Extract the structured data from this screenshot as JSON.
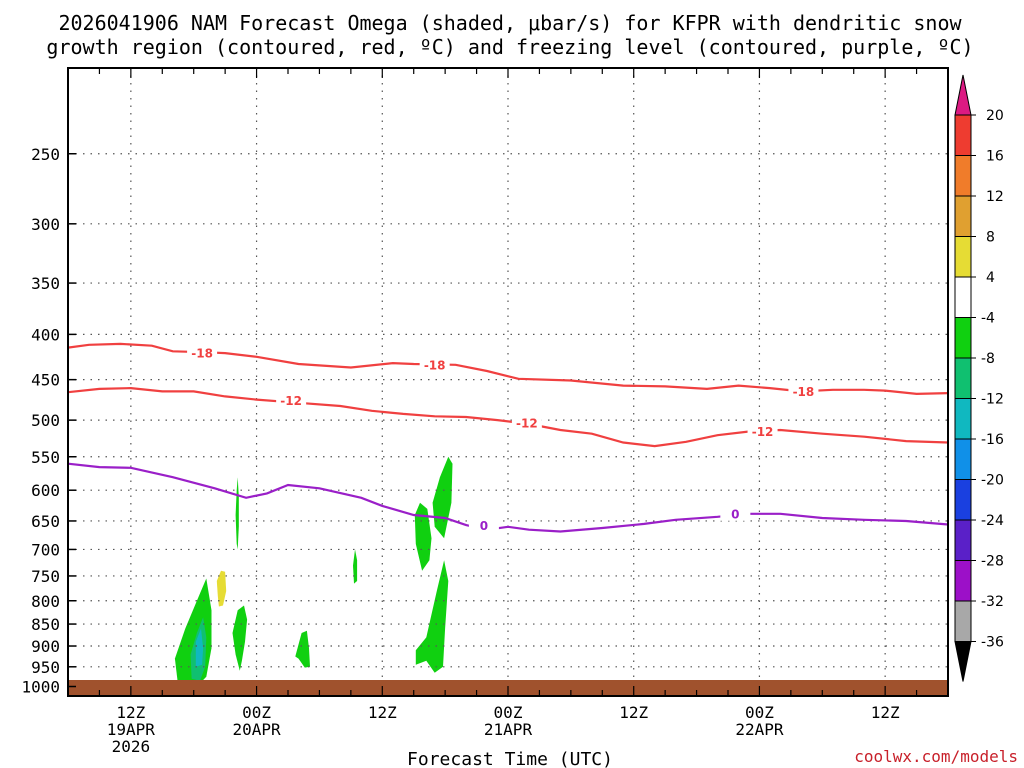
{
  "title_line1": "2026041906 NAM Forecast Omega (shaded, μbar/s) for KFPR with dendritic snow",
  "title_line2": "growth region (contoured, red, ºC) and freezing level (contoured, purple, ºC)",
  "credit": "coolwx.com/models",
  "colors": {
    "dgz_contour": "#f04040",
    "freezing_contour": "#9a1fc8",
    "ground": "#a0522d"
  },
  "chart_data": {
    "type": "heatmap",
    "xlabel": "Forecast Time (UTC)",
    "ylabel": "",
    "x_unit": "forecast hour from 2026-04-19 06Z",
    "xlim": [
      0,
      84
    ],
    "ylim": [
      1025,
      200
    ],
    "y_scale": "log-pressure",
    "grid": true,
    "y_ticks": [
      250,
      300,
      350,
      400,
      450,
      500,
      550,
      600,
      650,
      700,
      750,
      800,
      850,
      900,
      950,
      1000
    ],
    "x_ticks": [
      {
        "x": 6,
        "lines": [
          "12Z",
          "19APR",
          "2026"
        ]
      },
      {
        "x": 18,
        "lines": [
          "00Z",
          "20APR"
        ]
      },
      {
        "x": 30,
        "lines": [
          "12Z"
        ]
      },
      {
        "x": 42,
        "lines": [
          "00Z",
          "21APR"
        ]
      },
      {
        "x": 54,
        "lines": [
          "12Z"
        ]
      },
      {
        "x": 66,
        "lines": [
          "00Z",
          "22APR"
        ]
      },
      {
        "x": 78,
        "lines": [
          "12Z"
        ]
      }
    ],
    "contours": [
      {
        "level": -18,
        "label": "-18",
        "color": "#f04040",
        "points": [
          [
            0,
            414
          ],
          [
            2,
            411
          ],
          [
            5,
            410
          ],
          [
            8,
            412
          ],
          [
            10,
            418
          ],
          [
            13,
            419
          ],
          [
            15,
            420
          ],
          [
            18,
            424
          ],
          [
            22,
            432
          ],
          [
            27,
            436
          ],
          [
            31,
            431
          ],
          [
            33,
            432
          ],
          [
            37,
            433
          ],
          [
            40,
            440
          ],
          [
            43,
            449
          ],
          [
            48,
            451
          ],
          [
            53,
            457
          ],
          [
            57,
            458
          ],
          [
            61,
            461
          ],
          [
            64,
            457
          ],
          [
            67,
            460
          ],
          [
            70,
            464
          ],
          [
            73,
            462
          ],
          [
            76,
            462
          ],
          [
            78,
            463
          ],
          [
            81,
            467
          ],
          [
            84,
            466
          ]
        ],
        "label_at": [
          [
            12.8,
            420
          ],
          [
            35,
            433
          ],
          [
            70.2,
            464
          ]
        ]
      },
      {
        "level": -12,
        "label": "-12",
        "color": "#f04040",
        "points": [
          [
            0,
            465
          ],
          [
            3,
            461
          ],
          [
            6,
            460
          ],
          [
            9,
            464
          ],
          [
            12,
            464
          ],
          [
            15,
            470
          ],
          [
            18,
            474
          ],
          [
            22,
            478
          ],
          [
            26,
            482
          ],
          [
            29,
            488
          ],
          [
            32,
            492
          ],
          [
            35,
            495
          ],
          [
            38,
            496
          ],
          [
            41,
            500
          ],
          [
            44,
            505
          ],
          [
            47,
            513
          ],
          [
            50,
            518
          ],
          [
            53,
            530
          ],
          [
            56,
            535
          ],
          [
            59,
            529
          ],
          [
            62,
            520
          ],
          [
            65,
            515
          ],
          [
            68,
            513
          ],
          [
            72,
            518
          ],
          [
            76,
            522
          ],
          [
            80,
            528
          ],
          [
            84,
            530
          ]
        ],
        "label_at": [
          [
            21.3,
            475
          ],
          [
            43.8,
            504
          ],
          [
            66.3,
            515
          ]
        ]
      },
      {
        "level": 0,
        "label": "0",
        "color": "#9a1fc8",
        "points": [
          [
            0,
            560
          ],
          [
            3,
            565
          ],
          [
            6,
            566
          ],
          [
            10,
            580
          ],
          [
            14,
            597
          ],
          [
            17,
            612
          ],
          [
            19,
            605
          ],
          [
            21,
            592
          ],
          [
            24,
            597
          ],
          [
            28,
            612
          ],
          [
            30,
            625
          ],
          [
            33,
            640
          ],
          [
            36,
            645
          ],
          [
            38,
            657
          ],
          [
            40,
            665
          ],
          [
            42,
            660
          ],
          [
            44,
            665
          ],
          [
            47,
            668
          ],
          [
            51,
            662
          ],
          [
            55,
            655
          ],
          [
            58,
            648
          ],
          [
            62,
            643
          ],
          [
            65,
            638
          ],
          [
            68,
            638
          ],
          [
            72,
            645
          ],
          [
            76,
            648
          ],
          [
            80,
            650
          ],
          [
            84,
            656
          ]
        ],
        "label_at": [
          [
            39.7,
            658
          ],
          [
            63.7,
            638
          ]
        ]
      }
    ],
    "omega_regions": [
      {
        "level": -8,
        "polygon": [
          [
            10.5,
            995
          ],
          [
            10.2,
            930
          ],
          [
            11.2,
            860
          ],
          [
            12.3,
            800
          ],
          [
            13.2,
            755
          ],
          [
            13.7,
            820
          ],
          [
            13.7,
            905
          ],
          [
            13.2,
            975
          ],
          [
            12.3,
            1000
          ]
        ]
      },
      {
        "level": -12,
        "polygon": [
          [
            11.8,
            980
          ],
          [
            11.7,
            920
          ],
          [
            12.3,
            870
          ],
          [
            12.9,
            835
          ],
          [
            13.2,
            880
          ],
          [
            13.1,
            950
          ],
          [
            12.6,
            985
          ]
        ]
      },
      {
        "level": -16,
        "polygon": [
          [
            12.2,
            950
          ],
          [
            12.2,
            890
          ],
          [
            12.7,
            860
          ],
          [
            12.9,
            905
          ],
          [
            12.8,
            945
          ]
        ]
      },
      {
        "level": 4,
        "polygon": [
          [
            14.3,
            790
          ],
          [
            14.2,
            760
          ],
          [
            14.6,
            740
          ],
          [
            15.0,
            742
          ],
          [
            15.1,
            780
          ],
          [
            14.8,
            810
          ],
          [
            14.4,
            812
          ]
        ]
      },
      {
        "level": -8,
        "polygon": [
          [
            16.0,
            920
          ],
          [
            15.7,
            870
          ],
          [
            16.2,
            820
          ],
          [
            16.8,
            810
          ],
          [
            17.1,
            840
          ],
          [
            16.9,
            890
          ],
          [
            16.6,
            935
          ],
          [
            16.4,
            960
          ]
        ]
      },
      {
        "level": -8,
        "polygon": [
          [
            16.1,
            690
          ],
          [
            16.0,
            640
          ],
          [
            16.1,
            600
          ],
          [
            16.2,
            580
          ],
          [
            16.3,
            610
          ],
          [
            16.3,
            660
          ],
          [
            16.2,
            700
          ]
        ]
      },
      {
        "level": -8,
        "polygon": [
          [
            21.7,
            925
          ],
          [
            22.3,
            870
          ],
          [
            22.8,
            865
          ],
          [
            23.0,
            905
          ],
          [
            23.1,
            950
          ],
          [
            22.6,
            952
          ],
          [
            22.0,
            930
          ]
        ]
      },
      {
        "level": -8,
        "polygon": [
          [
            27.3,
            765
          ],
          [
            27.2,
            730
          ],
          [
            27.4,
            700
          ],
          [
            27.6,
            720
          ],
          [
            27.6,
            760
          ]
        ]
      },
      {
        "level": -8,
        "polygon": [
          [
            33.2,
            690
          ],
          [
            33.1,
            640
          ],
          [
            33.6,
            620
          ],
          [
            34.3,
            630
          ],
          [
            34.7,
            680
          ],
          [
            34.5,
            720
          ],
          [
            33.8,
            740
          ]
        ]
      },
      {
        "level": -8,
        "polygon": [
          [
            35.0,
            660
          ],
          [
            34.8,
            620
          ],
          [
            35.5,
            580
          ],
          [
            36.3,
            550
          ],
          [
            36.7,
            560
          ],
          [
            36.6,
            620
          ],
          [
            35.9,
            680
          ]
        ]
      },
      {
        "level": -8,
        "polygon": [
          [
            33.2,
            945
          ],
          [
            33.2,
            910
          ],
          [
            34.2,
            880
          ],
          [
            35.2,
            780
          ],
          [
            35.9,
            720
          ],
          [
            36.3,
            760
          ],
          [
            36.0,
            860
          ],
          [
            35.8,
            950
          ],
          [
            35.0,
            965
          ],
          [
            34.2,
            935
          ]
        ]
      }
    ],
    "colorbar": {
      "labels": [
        "20",
        "16",
        "12",
        "8",
        "4",
        "-4",
        "-8",
        "-12",
        "-16",
        "-20",
        "-24",
        "-28",
        "-32",
        "-36"
      ],
      "colors": [
        "#dc1a82",
        "#ee3c30",
        "#f07c2a",
        "#e0a030",
        "#e6dc34",
        "#ffffff",
        "#10d010",
        "#10c070",
        "#10b8c0",
        "#1090e8",
        "#1a40e0",
        "#5a20c8",
        "#9c10c8",
        "#a8a8a8",
        "#000000"
      ]
    }
  }
}
